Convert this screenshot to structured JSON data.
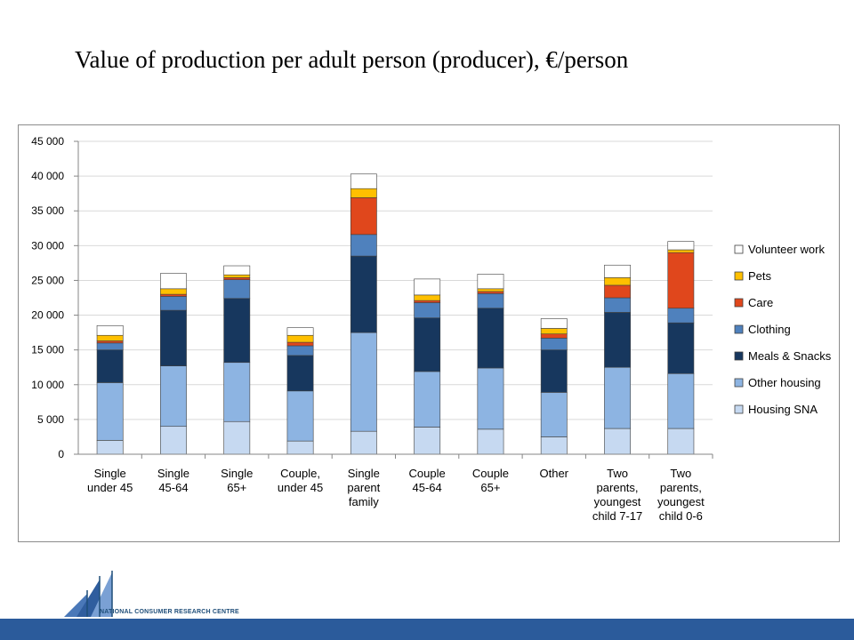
{
  "slide": {
    "title": "Value of production per adult person (producer), €/person",
    "logo_text": "NATIONAL CONSUMER RESEARCH CENTRE"
  },
  "chart_data": {
    "type": "bar",
    "stacked": true,
    "title": "",
    "xlabel": "",
    "ylabel": "",
    "ylim": [
      0,
      45000
    ],
    "yticks": [
      {
        "value": 0,
        "label": "0"
      },
      {
        "value": 5000,
        "label": "5 000"
      },
      {
        "value": 10000,
        "label": "10 000"
      },
      {
        "value": 15000,
        "label": "15 000"
      },
      {
        "value": 20000,
        "label": "20 000"
      },
      {
        "value": 25000,
        "label": "25 000"
      },
      {
        "value": 30000,
        "label": "30 000"
      },
      {
        "value": 35000,
        "label": "35 000"
      },
      {
        "value": 40000,
        "label": "40 000"
      },
      {
        "value": 45000,
        "label": "45 000"
      }
    ],
    "grid": true,
    "legend_position": "right",
    "categories": [
      [
        "Single",
        "under 45"
      ],
      [
        "Single",
        "45-64"
      ],
      [
        "Single",
        "65+"
      ],
      [
        "Couple,",
        "under 45"
      ],
      [
        "Single",
        "parent",
        "family"
      ],
      [
        "Couple",
        "45-64"
      ],
      [
        "Couple",
        "65+"
      ],
      [
        "Other"
      ],
      [
        "Two",
        "parents,",
        "youngest",
        "child  7-17"
      ],
      [
        "Two",
        "parents,",
        "youngest",
        "child 0-6"
      ]
    ],
    "series": [
      {
        "name": "Housing SNA",
        "color": "#c6d9f1",
        "values": [
          2000,
          4000,
          4700,
          1900,
          3300,
          3900,
          3600,
          2500,
          3700,
          3700
        ]
      },
      {
        "name": "Other housing",
        "color": "#8db4e2",
        "values": [
          8300,
          8700,
          8500,
          7200,
          14200,
          8000,
          8800,
          6400,
          8800,
          7900
        ]
      },
      {
        "name": "Meals & Snacks",
        "color": "#17375e",
        "values": [
          4700,
          8000,
          9200,
          5100,
          11000,
          7700,
          8600,
          6100,
          7900,
          7300
        ]
      },
      {
        "name": "Clothing",
        "color": "#4f81bd",
        "values": [
          1000,
          2000,
          2700,
          1400,
          3100,
          2200,
          2100,
          1700,
          2100,
          2100
        ]
      },
      {
        "name": "Care",
        "color": "#e0471c",
        "values": [
          300,
          300,
          300,
          500,
          5300,
          300,
          300,
          600,
          1800,
          8000
        ]
      },
      {
        "name": "Pets",
        "color": "#ffc000",
        "values": [
          800,
          800,
          400,
          1000,
          1300,
          800,
          400,
          800,
          1100,
          400
        ]
      },
      {
        "name": "Volunteer work",
        "color": "#ffffff",
        "values": [
          1400,
          2200,
          1300,
          1100,
          2100,
          2300,
          2100,
          1400,
          1800,
          1200
        ]
      }
    ]
  }
}
